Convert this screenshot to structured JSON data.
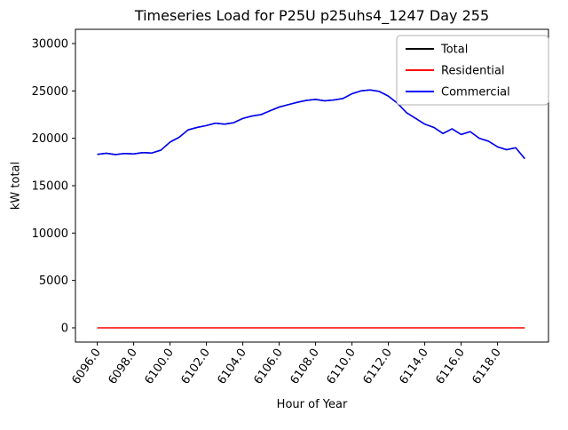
{
  "figure": {
    "title": "Timeseries Load for P25U p25uhs4_1247  Day 255",
    "xlabel": "Hour of Year",
    "ylabel": "kW total"
  },
  "chart_data": {
    "type": "line",
    "title": "Timeseries Load for P25U p25uhs4_1247  Day 255",
    "xlabel": "Hour of Year",
    "ylabel": "kW total",
    "grid": false,
    "legend_position": "upper right",
    "xlim": [
      6094.8,
      6120.8
    ],
    "ylim": [
      -1500,
      31500
    ],
    "xticks": [
      6096,
      6098,
      6100,
      6102,
      6104,
      6106,
      6108,
      6110,
      6112,
      6114,
      6116,
      6118
    ],
    "xtick_labels": [
      "6096.0",
      "6098.0",
      "6100.0",
      "6102.0",
      "6104.0",
      "6106.0",
      "6108.0",
      "6110.0",
      "6112.0",
      "6114.0",
      "6116.0",
      "6118.0"
    ],
    "yticks": [
      0,
      5000,
      10000,
      15000,
      20000,
      25000,
      30000
    ],
    "ytick_labels": [
      "0",
      "5000",
      "10000",
      "15000",
      "20000",
      "25000",
      "30000"
    ],
    "x": [
      6096.0,
      6096.5,
      6097.0,
      6097.5,
      6098.0,
      6098.5,
      6099.0,
      6099.5,
      6100.0,
      6100.5,
      6101.0,
      6101.5,
      6102.0,
      6102.5,
      6103.0,
      6103.5,
      6104.0,
      6104.5,
      6105.0,
      6105.5,
      6106.0,
      6106.5,
      6107.0,
      6107.5,
      6108.0,
      6108.5,
      6109.0,
      6109.5,
      6110.0,
      6110.5,
      6111.0,
      6111.5,
      6112.0,
      6112.5,
      6113.0,
      6113.5,
      6114.0,
      6114.5,
      6115.0,
      6115.5,
      6116.0,
      6116.5,
      6117.0,
      6117.5,
      6118.0,
      6118.5,
      6119.0,
      6119.5
    ],
    "series": [
      {
        "name": "Total",
        "color": "#000000",
        "values": [
          18300,
          18420,
          18280,
          18400,
          18350,
          18500,
          18450,
          18750,
          19600,
          20100,
          20900,
          21150,
          21350,
          21600,
          21500,
          21650,
          22100,
          22350,
          22500,
          22900,
          23300,
          23550,
          23800,
          24000,
          24100,
          23950,
          24050,
          24200,
          24700,
          25000,
          25100,
          24950,
          24450,
          23700,
          22700,
          22100,
          21500,
          21150,
          20500,
          21000,
          20400,
          20700,
          20000,
          19700,
          19100,
          18800,
          19000,
          17850
        ]
      },
      {
        "name": "Residential",
        "color": "#ff0000",
        "values": [
          0,
          0,
          0,
          0,
          0,
          0,
          0,
          0,
          0,
          0,
          0,
          0,
          0,
          0,
          0,
          0,
          0,
          0,
          0,
          0,
          0,
          0,
          0,
          0,
          0,
          0,
          0,
          0,
          0,
          0,
          0,
          0,
          0,
          0,
          0,
          0,
          0,
          0,
          0,
          0,
          0,
          0,
          0,
          0,
          0,
          0,
          0,
          0
        ]
      },
      {
        "name": "Commercial",
        "color": "#0000ff",
        "values": [
          18300,
          18420,
          18280,
          18400,
          18350,
          18500,
          18450,
          18750,
          19600,
          20100,
          20900,
          21150,
          21350,
          21600,
          21500,
          21650,
          22100,
          22350,
          22500,
          22900,
          23300,
          23550,
          23800,
          24000,
          24100,
          23950,
          24050,
          24200,
          24700,
          25000,
          25100,
          24950,
          24450,
          23700,
          22700,
          22100,
          21500,
          21150,
          20500,
          21000,
          20400,
          20700,
          20000,
          19700,
          19100,
          18800,
          19000,
          17850
        ]
      }
    ]
  }
}
